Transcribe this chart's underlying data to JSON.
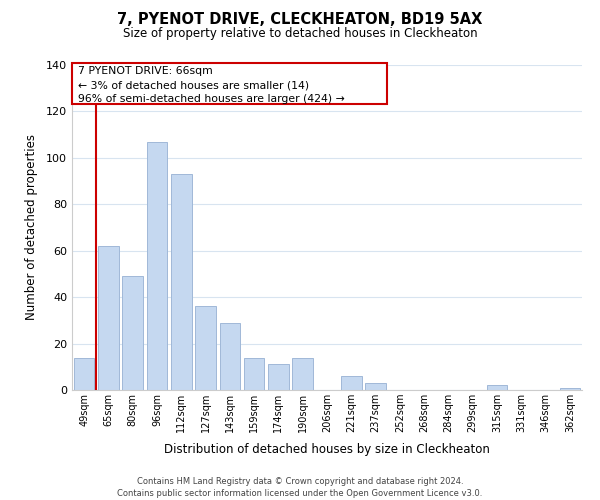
{
  "title": "7, PYENOT DRIVE, CLECKHEATON, BD19 5AX",
  "subtitle": "Size of property relative to detached houses in Cleckheaton",
  "xlabel": "Distribution of detached houses by size in Cleckheaton",
  "ylabel": "Number of detached properties",
  "categories": [
    "49sqm",
    "65sqm",
    "80sqm",
    "96sqm",
    "112sqm",
    "127sqm",
    "143sqm",
    "159sqm",
    "174sqm",
    "190sqm",
    "206sqm",
    "221sqm",
    "237sqm",
    "252sqm",
    "268sqm",
    "284sqm",
    "299sqm",
    "315sqm",
    "331sqm",
    "346sqm",
    "362sqm"
  ],
  "values": [
    14,
    62,
    49,
    107,
    93,
    36,
    29,
    14,
    11,
    14,
    0,
    6,
    3,
    0,
    0,
    0,
    0,
    2,
    0,
    0,
    1
  ],
  "bar_color": "#c5d8f0",
  "bar_edge_color": "#a0b8d8",
  "vline_x_index": 1,
  "vline_color": "#cc0000",
  "ylim": [
    0,
    140
  ],
  "yticks": [
    0,
    20,
    40,
    60,
    80,
    100,
    120,
    140
  ],
  "annotation_title": "7 PYENOT DRIVE: 66sqm",
  "annotation_line1": "← 3% of detached houses are smaller (14)",
  "annotation_line2": "96% of semi-detached houses are larger (424) →",
  "annotation_box_color": "#ffffff",
  "annotation_box_edge": "#cc0000",
  "footer_line1": "Contains HM Land Registry data © Crown copyright and database right 2024.",
  "footer_line2": "Contains public sector information licensed under the Open Government Licence v3.0.",
  "background_color": "#ffffff",
  "grid_color": "#d8e4f0"
}
